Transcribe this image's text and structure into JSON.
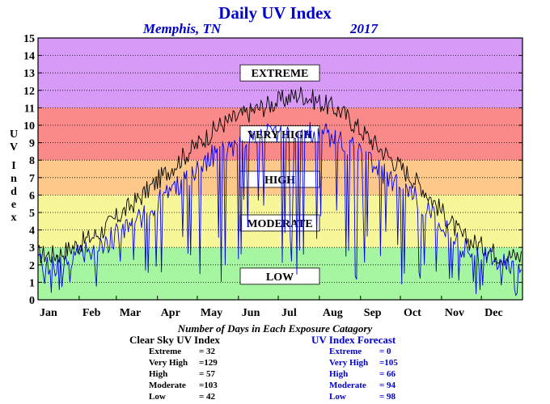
{
  "chart_data": {
    "type": "line",
    "title": "Daily UV Index",
    "subtitle_location": "Memphis, TN",
    "subtitle_year": "2017",
    "ylabel": "UV Index",
    "ylim": [
      0,
      15
    ],
    "yticks": [
      "0",
      "1",
      "2",
      "3",
      "4",
      "5",
      "6",
      "7",
      "8",
      "9",
      "10",
      "11",
      "12",
      "13",
      "14",
      "15"
    ],
    "months": [
      "Jan",
      "Feb",
      "Mar",
      "Apr",
      "May",
      "Jun",
      "Jul",
      "Aug",
      "Sep",
      "Oct",
      "Nov",
      "Dec"
    ],
    "bands": [
      {
        "label": "LOW",
        "from": 0,
        "to": 3,
        "color": "#a6f5a0"
      },
      {
        "label": "MODERATE",
        "from": 3,
        "to": 6,
        "color": "#f7f79a"
      },
      {
        "label": "HIGH",
        "from": 6,
        "to": 8,
        "color": "#fcc98a"
      },
      {
        "label": "VERY HIGH",
        "from": 8,
        "to": 11,
        "color": "#fa8a8a"
      },
      {
        "label": "EXTREME",
        "from": 11,
        "to": 15,
        "color": "#d89af7"
      }
    ],
    "clear_sky_monthly": [
      {
        "month": "Jan",
        "uv": 2.6
      },
      {
        "month": "Feb",
        "uv": 3.8
      },
      {
        "month": "Mar",
        "uv": 5.8
      },
      {
        "month": "Apr",
        "uv": 8.0
      },
      {
        "month": "May",
        "uv": 10.0
      },
      {
        "month": "Jun",
        "uv": 11.0
      },
      {
        "month": "Jul",
        "uv": 11.8
      },
      {
        "month": "Aug",
        "uv": 10.8
      },
      {
        "month": "Sep",
        "uv": 8.6
      },
      {
        "month": "Oct",
        "uv": 6.5
      },
      {
        "month": "Nov",
        "uv": 3.6
      },
      {
        "month": "Dec",
        "uv": 2.5
      }
    ],
    "forecast_monthly": [
      {
        "month": "Jan",
        "uv": 2.0
      },
      {
        "month": "Feb",
        "uv": 3.0
      },
      {
        "month": "Mar",
        "uv": 4.6
      },
      {
        "month": "Apr",
        "uv": 6.6
      },
      {
        "month": "May",
        "uv": 8.6
      },
      {
        "month": "Jun",
        "uv": 9.5
      },
      {
        "month": "Jul",
        "uv": 9.8
      },
      {
        "month": "Aug",
        "uv": 9.2
      },
      {
        "month": "Sep",
        "uv": 7.4
      },
      {
        "month": "Oct",
        "uv": 5.6
      },
      {
        "month": "Nov",
        "uv": 3.0
      },
      {
        "month": "Dec",
        "uv": 2.0
      }
    ],
    "series_colors": {
      "clear_sky": "#000000",
      "forecast": "#0000ee"
    },
    "xlabel": "Number of Days in Each Exposure Catagory",
    "grid": true
  },
  "stats": {
    "clear": {
      "title": "Clear Sky UV Index",
      "rows": [
        {
          "label": "Extreme",
          "value": "= 32"
        },
        {
          "label": "Very High",
          "value": "=129"
        },
        {
          "label": "High",
          "value": "= 57"
        },
        {
          "label": "Moderate",
          "value": "=103"
        },
        {
          "label": "Low",
          "value": "= 42"
        }
      ]
    },
    "forecast": {
      "title": "UV Index Forecast",
      "rows": [
        {
          "label": "Extreme",
          "value": "= 0"
        },
        {
          "label": "Very High",
          "value": "=105"
        },
        {
          "label": "High",
          "value": "= 66"
        },
        {
          "label": "Moderate",
          "value": "= 94"
        },
        {
          "label": "Low",
          "value": "= 98"
        }
      ]
    }
  }
}
